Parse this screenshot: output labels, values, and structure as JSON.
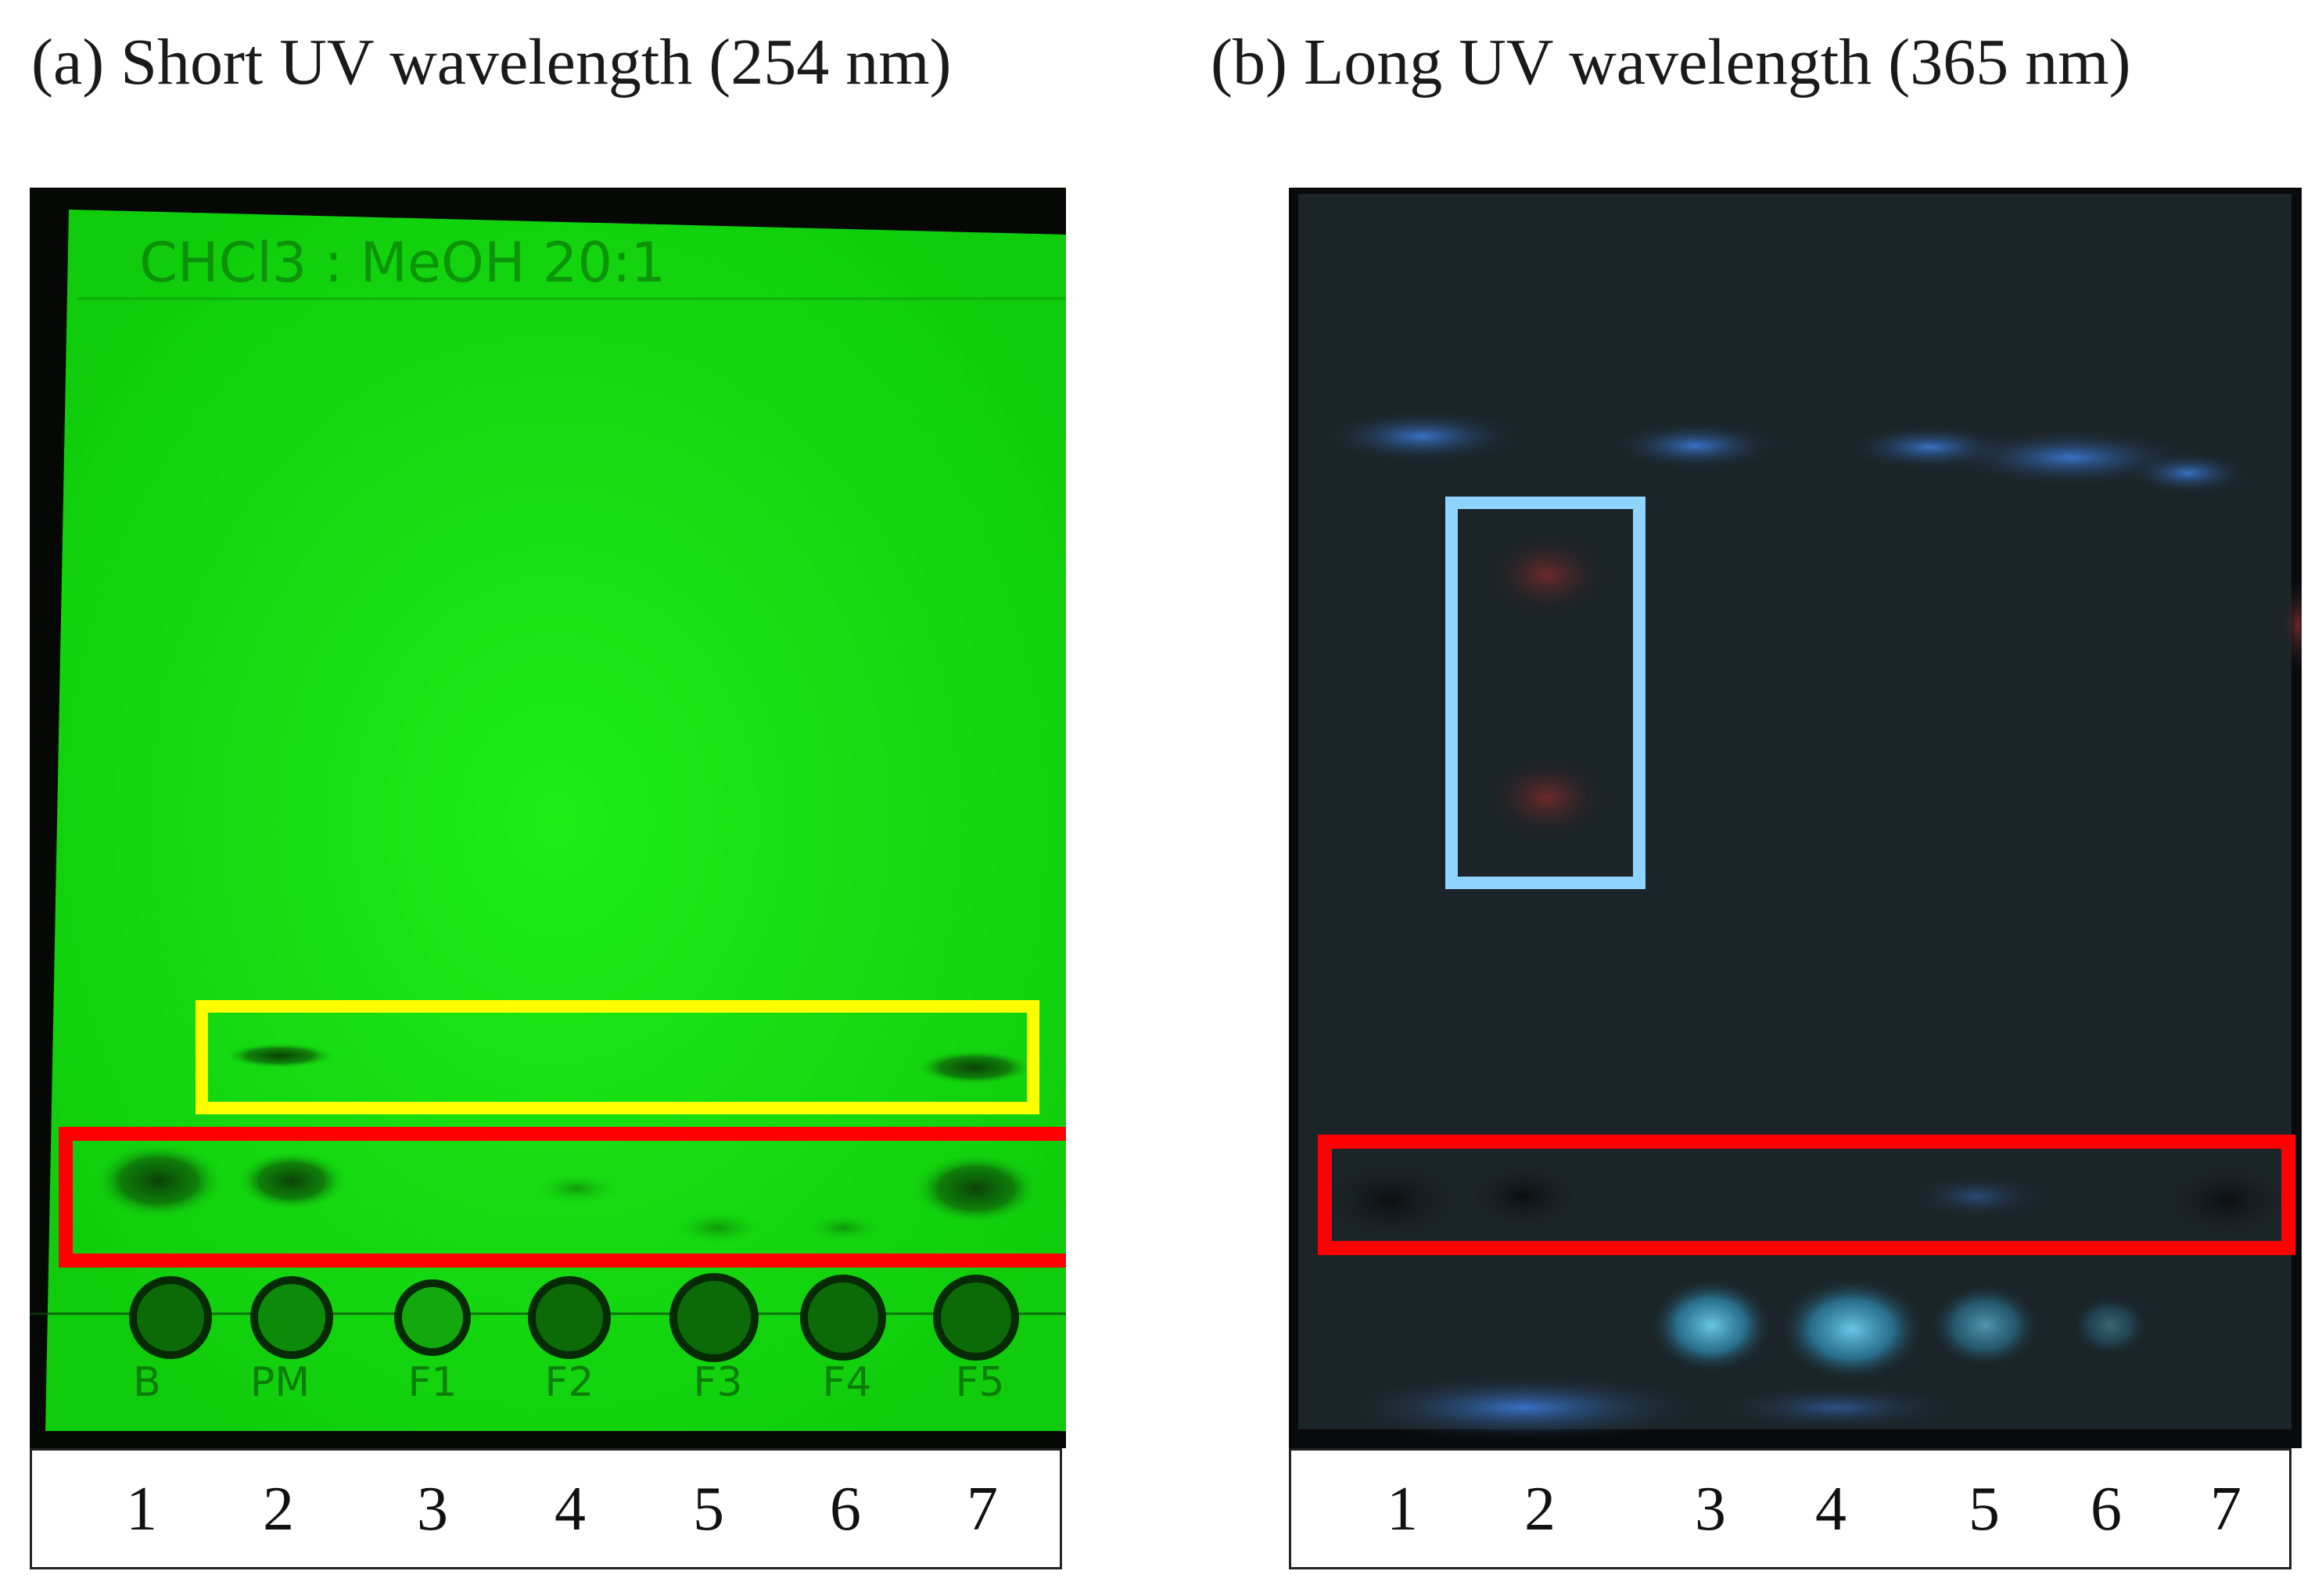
{
  "panels": [
    {
      "title": "(a) Short UV wavelength (254 nm)",
      "plate_label": "CHCl3 : MeOH  20:1",
      "spot_labels": [
        "B",
        "PM",
        "F1",
        "F2",
        "F3",
        "F4",
        "F5"
      ],
      "lanes": [
        "1",
        "2",
        "3",
        "4",
        "5",
        "6",
        "7"
      ]
    },
    {
      "title": "(b) Long UV wavelength (365 nm)",
      "lanes": [
        "1",
        "2",
        "3",
        "4",
        "5",
        "6",
        "7"
      ]
    }
  ],
  "colors": {
    "plate_a": "#15e010",
    "plate_b": "#1b2326",
    "box_yellow": "#ffff00",
    "box_red": "#ff0000",
    "box_lightblue": "#8fd3ff"
  }
}
